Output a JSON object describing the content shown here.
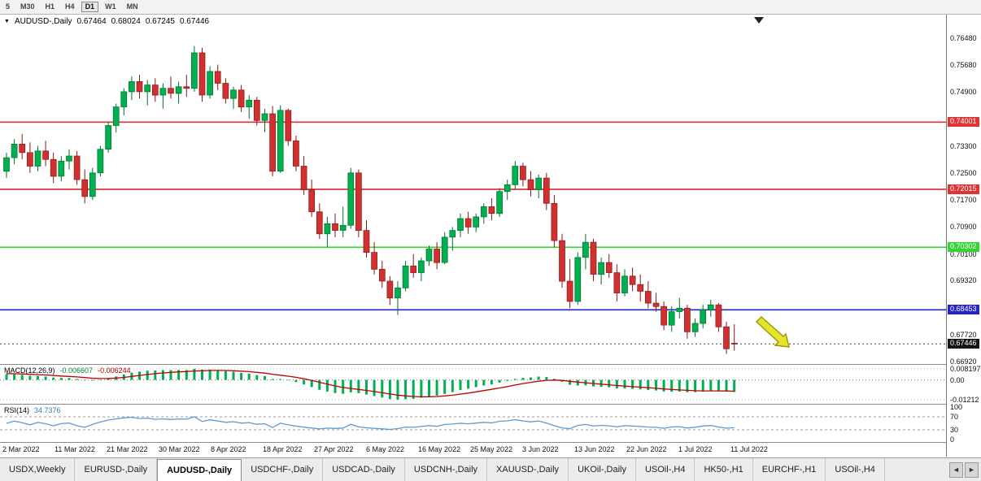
{
  "toolbar": {
    "timeframes": [
      "5",
      "M30",
      "H1",
      "H4",
      "D1",
      "W1",
      "MN"
    ],
    "active": "D1"
  },
  "header": {
    "symbol": "AUDUSD-,Daily",
    "open": "0.67464",
    "high": "0.68024",
    "low": "0.67245",
    "close": "0.67446"
  },
  "price_axis": {
    "ticks": [
      "0.76480",
      "0.75680",
      "0.74900",
      "0.73300",
      "0.72500",
      "0.71700",
      "0.70900",
      "0.70100",
      "0.69320",
      "0.67720",
      "0.66920"
    ]
  },
  "levels": [
    {
      "price": 0.74001,
      "label": "0.74001",
      "color": "#e03434"
    },
    {
      "price": 0.72015,
      "label": "0.72015",
      "color": "#e03434"
    },
    {
      "price": 0.70302,
      "label": "0.70302",
      "color": "#35d435"
    },
    {
      "price": 0.68453,
      "label": "0.68453",
      "color": "#2424c8"
    }
  ],
  "current_price": {
    "price": 0.67446,
    "label": "0.67446",
    "color": "#151515"
  },
  "chart_data": {
    "type": "candlestick",
    "symbol": "AUDUSD",
    "timeframe": "Daily",
    "title": "AUDUSD-,Daily",
    "y_range": [
      0.6685,
      0.7718
    ],
    "x_labels": [
      "2 Mar 2022",
      "11 Mar 2022",
      "21 Mar 2022",
      "30 Mar 2022",
      "8 Apr 2022",
      "18 Apr 2022",
      "27 Apr 2022",
      "6 May 2022",
      "16 May 2022",
      "25 May 2022",
      "3 Jun 2022",
      "13 Jun 2022",
      "22 Jun 2022",
      "1 Jul 2022",
      "11 Jul 2022"
    ],
    "candles": [
      [
        0.7255,
        0.731,
        0.7235,
        0.7295
      ],
      [
        0.7295,
        0.735,
        0.7275,
        0.7335
      ],
      [
        0.7335,
        0.7365,
        0.729,
        0.731
      ],
      [
        0.731,
        0.734,
        0.725,
        0.727
      ],
      [
        0.727,
        0.733,
        0.7255,
        0.7315
      ],
      [
        0.7315,
        0.7345,
        0.727,
        0.729
      ],
      [
        0.729,
        0.731,
        0.722,
        0.724
      ],
      [
        0.724,
        0.73,
        0.7225,
        0.7285
      ],
      [
        0.7285,
        0.732,
        0.726,
        0.73
      ],
      [
        0.73,
        0.7315,
        0.7215,
        0.723
      ],
      [
        0.723,
        0.726,
        0.716,
        0.718
      ],
      [
        0.718,
        0.7265,
        0.717,
        0.725
      ],
      [
        0.725,
        0.733,
        0.724,
        0.732
      ],
      [
        0.732,
        0.74,
        0.731,
        0.739
      ],
      [
        0.739,
        0.7455,
        0.737,
        0.7445
      ],
      [
        0.7445,
        0.75,
        0.742,
        0.749
      ],
      [
        0.749,
        0.7535,
        0.7465,
        0.752
      ],
      [
        0.752,
        0.754,
        0.747,
        0.749
      ],
      [
        0.749,
        0.7525,
        0.745,
        0.751
      ],
      [
        0.751,
        0.753,
        0.746,
        0.748
      ],
      [
        0.748,
        0.7515,
        0.744,
        0.75
      ],
      [
        0.75,
        0.7535,
        0.747,
        0.7485
      ],
      [
        0.7485,
        0.752,
        0.7455,
        0.7505
      ],
      [
        0.7505,
        0.754,
        0.7475,
        0.75
      ],
      [
        0.75,
        0.7625,
        0.749,
        0.7605
      ],
      [
        0.7605,
        0.762,
        0.746,
        0.748
      ],
      [
        0.748,
        0.7565,
        0.747,
        0.755
      ],
      [
        0.755,
        0.757,
        0.7495,
        0.7515
      ],
      [
        0.7515,
        0.753,
        0.7455,
        0.747
      ],
      [
        0.747,
        0.7505,
        0.744,
        0.7495
      ],
      [
        0.7495,
        0.751,
        0.743,
        0.7445
      ],
      [
        0.7445,
        0.748,
        0.741,
        0.7465
      ],
      [
        0.7465,
        0.7475,
        0.739,
        0.7405
      ],
      [
        0.7405,
        0.744,
        0.737,
        0.7425
      ],
      [
        0.7425,
        0.7448,
        0.724,
        0.7255
      ],
      [
        0.7255,
        0.745,
        0.725,
        0.7435
      ],
      [
        0.7435,
        0.744,
        0.733,
        0.7345
      ],
      [
        0.7345,
        0.736,
        0.7255,
        0.727
      ],
      [
        0.727,
        0.73,
        0.7185,
        0.72
      ],
      [
        0.72,
        0.723,
        0.712,
        0.7135
      ],
      [
        0.7135,
        0.716,
        0.7055,
        0.707
      ],
      [
        0.707,
        0.712,
        0.703,
        0.71
      ],
      [
        0.71,
        0.713,
        0.706,
        0.708
      ],
      [
        0.708,
        0.715,
        0.706,
        0.7095
      ],
      [
        0.7095,
        0.7265,
        0.7085,
        0.725
      ],
      [
        0.725,
        0.726,
        0.706,
        0.708
      ],
      [
        0.708,
        0.711,
        0.7,
        0.7015
      ],
      [
        0.7015,
        0.7045,
        0.695,
        0.6965
      ],
      [
        0.6965,
        0.699,
        0.691,
        0.693
      ],
      [
        0.693,
        0.6945,
        0.686,
        0.688
      ],
      [
        0.688,
        0.693,
        0.683,
        0.691
      ],
      [
        0.691,
        0.699,
        0.69,
        0.6975
      ],
      [
        0.6975,
        0.701,
        0.694,
        0.6955
      ],
      [
        0.6955,
        0.7,
        0.693,
        0.699
      ],
      [
        0.699,
        0.7035,
        0.6975,
        0.7025
      ],
      [
        0.7025,
        0.7045,
        0.6965,
        0.6985
      ],
      [
        0.6985,
        0.7075,
        0.698,
        0.706
      ],
      [
        0.706,
        0.709,
        0.702,
        0.708
      ],
      [
        0.708,
        0.713,
        0.706,
        0.7115
      ],
      [
        0.7115,
        0.7135,
        0.707,
        0.709
      ],
      [
        0.709,
        0.713,
        0.7075,
        0.712
      ],
      [
        0.712,
        0.716,
        0.71,
        0.715
      ],
      [
        0.715,
        0.7175,
        0.711,
        0.713
      ],
      [
        0.713,
        0.7205,
        0.712,
        0.7195
      ],
      [
        0.7195,
        0.723,
        0.717,
        0.7215
      ],
      [
        0.7215,
        0.7285,
        0.72,
        0.727
      ],
      [
        0.727,
        0.728,
        0.721,
        0.723
      ],
      [
        0.723,
        0.7255,
        0.718,
        0.72
      ],
      [
        0.72,
        0.7245,
        0.7175,
        0.7235
      ],
      [
        0.7235,
        0.725,
        0.714,
        0.716
      ],
      [
        0.716,
        0.7185,
        0.703,
        0.705
      ],
      [
        0.705,
        0.707,
        0.691,
        0.693
      ],
      [
        0.693,
        0.6995,
        0.685,
        0.687
      ],
      [
        0.687,
        0.7015,
        0.686,
        0.7
      ],
      [
        0.7,
        0.707,
        0.6965,
        0.7045
      ],
      [
        0.7045,
        0.7055,
        0.693,
        0.695
      ],
      [
        0.695,
        0.7,
        0.692,
        0.6985
      ],
      [
        0.6985,
        0.701,
        0.694,
        0.6955
      ],
      [
        0.6955,
        0.698,
        0.687,
        0.6895
      ],
      [
        0.6895,
        0.6965,
        0.6885,
        0.6945
      ],
      [
        0.6945,
        0.697,
        0.69,
        0.692
      ],
      [
        0.692,
        0.695,
        0.687,
        0.69
      ],
      [
        0.69,
        0.693,
        0.685,
        0.6865
      ],
      [
        0.6865,
        0.6895,
        0.684,
        0.6855
      ],
      [
        0.6855,
        0.687,
        0.6785,
        0.68
      ],
      [
        0.68,
        0.6855,
        0.678,
        0.684
      ],
      [
        0.684,
        0.688,
        0.682,
        0.685
      ],
      [
        0.685,
        0.686,
        0.676,
        0.678
      ],
      [
        0.678,
        0.682,
        0.6765,
        0.6805
      ],
      [
        0.6805,
        0.686,
        0.679,
        0.6845
      ],
      [
        0.6845,
        0.6875,
        0.6825,
        0.686
      ],
      [
        0.686,
        0.6865,
        0.678,
        0.6795
      ],
      [
        0.6795,
        0.681,
        0.6715,
        0.673
      ],
      [
        0.67464,
        0.68024,
        0.67245,
        0.67446
      ]
    ]
  },
  "macd": {
    "label": "MACD(12,26,9)",
    "main_value": "-0.006607",
    "signal_value": "-0.006244",
    "axis": {
      "max": "0.008197",
      "zero": "0.00",
      "min": "-0.01212"
    }
  },
  "rsi": {
    "label": "RSI(14)",
    "value": "34.7376",
    "axis": [
      "100",
      "70",
      "30",
      "0"
    ],
    "upper_level": 70,
    "lower_level": 30
  },
  "tabs": {
    "items": [
      "USDX,Weekly",
      "EURUSD-,Daily",
      "AUDUSD-,Daily",
      "USDCHF-,Daily",
      "USDCAD-,Daily",
      "USDCNH-,Daily",
      "XAUUSD-,Daily",
      "UKOil-,Daily",
      "USOil-,H4",
      "HK50-,H1",
      "EURCHF-,H1",
      "USOil-,H4"
    ],
    "active_index": 2,
    "scroll_left_icon": "◄",
    "scroll_right_icon": "►"
  },
  "colors": {
    "up": "#00b050",
    "up_border": "#00702c",
    "down": "#d03030",
    "down_border": "#8d1616",
    "macd_hist": "#00b050",
    "macd_signal": "#c00000",
    "rsi_line": "#5b9bd5",
    "arrow_fill": "#e4e42a",
    "arrow_stroke": "#9a9a12",
    "shift_marker": "#222222"
  }
}
